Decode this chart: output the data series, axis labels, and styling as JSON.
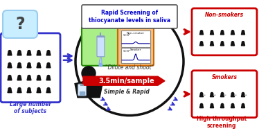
{
  "title": "Rapid Screening of\nthiocyanate levels in saliva",
  "title_color": "#0000cc",
  "bg_color": "#ffffff",
  "left_box_color": "#3333cc",
  "right_ns_color": "#cc0000",
  "right_s_color": "#cc0000",
  "green_box_color": "#aaee88",
  "green_edge_color": "#228800",
  "orange_box_color": "#f4c080",
  "orange_edge_color": "#cc6600",
  "arrow_red": "#cc0000",
  "arrow_blue": "#3333cc",
  "label_left": "Large number\nof subjects",
  "label_left_color": "#3333cc",
  "label_right": "High throughput\nscreening",
  "label_right_color": "#cc0000",
  "label_nonsmokers": "Non-smokers",
  "label_smokers": "Smokers",
  "label_nonsmokers_color": "#cc0000",
  "label_smokers_color": "#cc0000",
  "dilute_shoot": "\"Dilute and shoot\"",
  "time_label": "3.5min/sample",
  "simple_rapid": "Simple & Rapid",
  "circle_color": "#111111",
  "figsize": [
    3.74,
    1.89
  ],
  "dpi": 100
}
